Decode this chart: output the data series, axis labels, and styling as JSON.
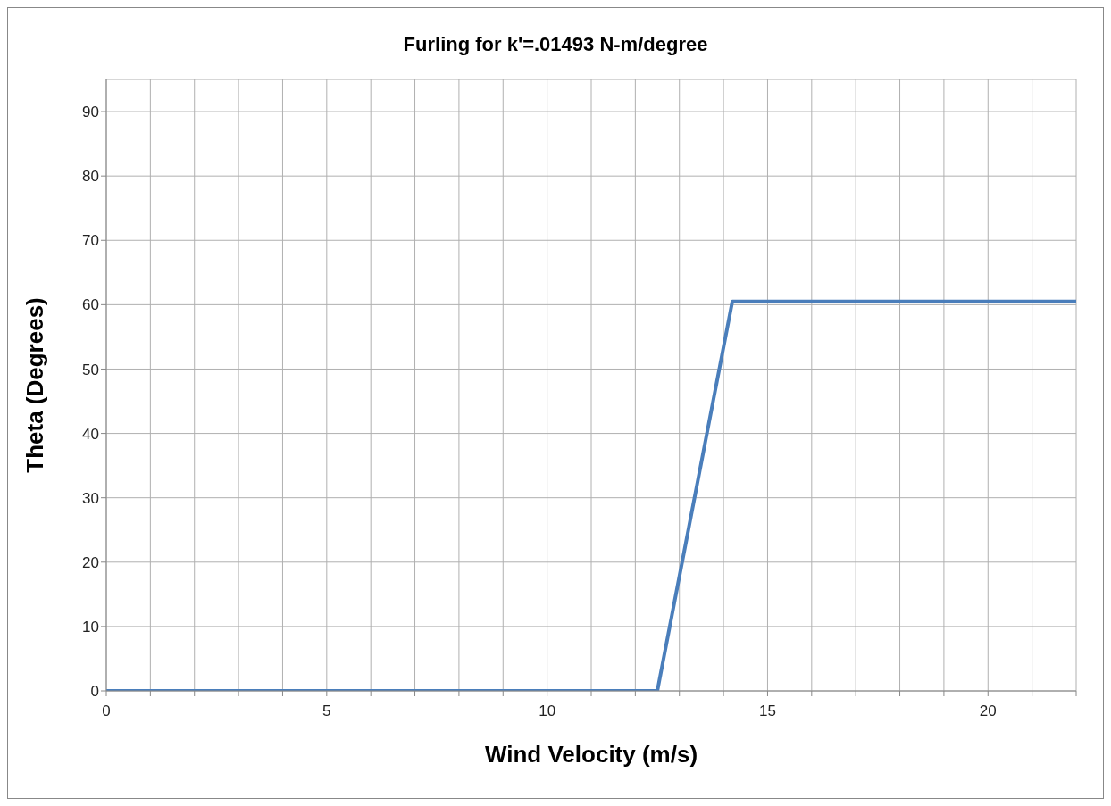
{
  "chart_data": {
    "type": "line",
    "title": "Furling for k'=.01493 N-m/degree",
    "xlabel": "Wind Velocity (m/s)",
    "ylabel": "Theta (Degrees)",
    "x": [
      0,
      12.5,
      14.2,
      22
    ],
    "series": [
      {
        "color": "#4a7ebb",
        "values": [
          0,
          0,
          60.5,
          60.5
        ]
      }
    ],
    "xlim": [
      0,
      22
    ],
    "xticks": [
      0,
      {
        "value": 1,
        "label": null
      },
      {
        "value": 2,
        "label": null
      },
      {
        "value": 3,
        "label": null
      },
      {
        "value": 4,
        "label": null
      },
      5,
      {
        "value": 6,
        "label": null
      },
      {
        "value": 7,
        "label": null
      },
      {
        "value": 8,
        "label": null
      },
      {
        "value": 9,
        "label": null
      },
      10,
      {
        "value": 11,
        "label": null
      },
      {
        "value": 12,
        "label": null
      },
      {
        "value": 13,
        "label": null
      },
      {
        "value": 14,
        "label": null
      },
      15,
      {
        "value": 16,
        "label": null
      },
      {
        "value": 17,
        "label": null
      },
      {
        "value": 18,
        "label": null
      },
      {
        "value": 19,
        "label": null
      },
      20,
      {
        "value": 21,
        "label": null
      },
      {
        "value": 22,
        "label": null
      }
    ],
    "ylim": [
      0,
      95
    ],
    "yticks": [
      0,
      10,
      20,
      30,
      40,
      50,
      60,
      70,
      80,
      90
    ],
    "grid": true,
    "legend": false,
    "marker": "none",
    "line_style": "solid"
  }
}
